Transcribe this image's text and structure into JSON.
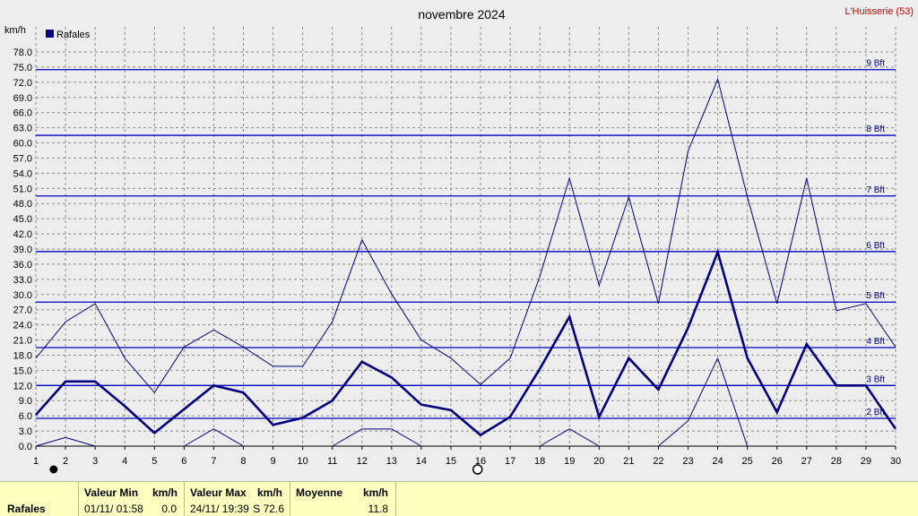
{
  "header": {
    "title": "novembre 2024",
    "station": "L'Huisserie (53)",
    "unit": "km/h"
  },
  "chart_data": {
    "type": "line",
    "title": "novembre 2024",
    "ylabel": "km/h",
    "ylim": [
      0,
      78
    ],
    "yticks": [
      "0.0",
      "3.0",
      "6.0",
      "9.0",
      "12.0",
      "15.0",
      "18.0",
      "21.0",
      "24.0",
      "27.0",
      "30.0",
      "33.0",
      "36.0",
      "39.0",
      "42.0",
      "45.0",
      "48.0",
      "51.0",
      "54.0",
      "57.0",
      "60.0",
      "63.0",
      "66.0",
      "69.0",
      "72.0",
      "75.0",
      "78.0"
    ],
    "x": [
      1,
      2,
      3,
      4,
      5,
      6,
      7,
      8,
      9,
      10,
      11,
      12,
      13,
      14,
      15,
      16,
      17,
      18,
      19,
      20,
      21,
      22,
      23,
      24,
      25,
      26,
      27,
      28,
      29,
      30
    ],
    "grid": true,
    "legend": "top-left",
    "legend_label": "Rafales",
    "series": [
      {
        "name": "Rafales",
        "style": "thick",
        "values": [
          6.2,
          12.8,
          12.8,
          7.9,
          2.6,
          7.3,
          12.0,
          10.6,
          4.2,
          5.6,
          9.0,
          16.7,
          13.6,
          8.2,
          7.1,
          2.2,
          5.8,
          15.3,
          25.6,
          5.8,
          17.4,
          11.2,
          23.4,
          38.4,
          17.4,
          6.7,
          20.2,
          12.0,
          12.0,
          3.4
        ]
      },
      {
        "name": "",
        "style": "thin-max",
        "values": [
          17.4,
          24.6,
          28.2,
          17.4,
          10.6,
          19.6,
          23.0,
          19.6,
          15.8,
          15.8,
          24.6,
          40.8,
          30.1,
          21.0,
          17.4,
          12.2,
          17.4,
          33.6,
          53.0,
          31.8,
          49.3,
          28.2,
          58.4,
          72.6,
          49.3,
          28.2,
          53.0,
          26.8,
          28.2,
          19.6
        ]
      },
      {
        "name": "",
        "style": "thin-min",
        "values": [
          0,
          1.7,
          0,
          0,
          0,
          0,
          3.4,
          0,
          0,
          0,
          0,
          3.4,
          3.4,
          0,
          0,
          0,
          0,
          0,
          3.4,
          0,
          0,
          0,
          5.0,
          17.4,
          0,
          0,
          0,
          0,
          0,
          0
        ]
      }
    ],
    "beaufort": [
      {
        "label": "2 Bft",
        "value": 5.5
      },
      {
        "label": "3 Bft",
        "value": 12.0
      },
      {
        "label": "4 Bft",
        "value": 19.5
      },
      {
        "label": "5 Bft",
        "value": 28.5
      },
      {
        "label": "6 Bft",
        "value": 38.5
      },
      {
        "label": "7 Bft",
        "value": 49.5
      },
      {
        "label": "8 Bft",
        "value": 61.5
      },
      {
        "label": "9 Bft",
        "value": 74.5
      }
    ],
    "moon": [
      {
        "day": 1.6,
        "phase": "new"
      },
      {
        "day": 15.9,
        "phase": "full"
      }
    ],
    "colors": {
      "series": "#000080",
      "bft": "#0000c0",
      "grid": "#8c8c8c",
      "background": "#ededed"
    }
  },
  "footer": {
    "row_label": "Rafales",
    "min_header": "Valeur Min",
    "min_unit": "km/h",
    "min_date": "01/11/  01:58",
    "min_value": "0.0",
    "max_header": "Valeur Max",
    "max_unit": "km/h",
    "max_date": "24/11/  19:39",
    "max_value": "S 72.6",
    "avg_header": "Moyenne",
    "avg_unit": "km/h",
    "avg_value": "11.8"
  }
}
